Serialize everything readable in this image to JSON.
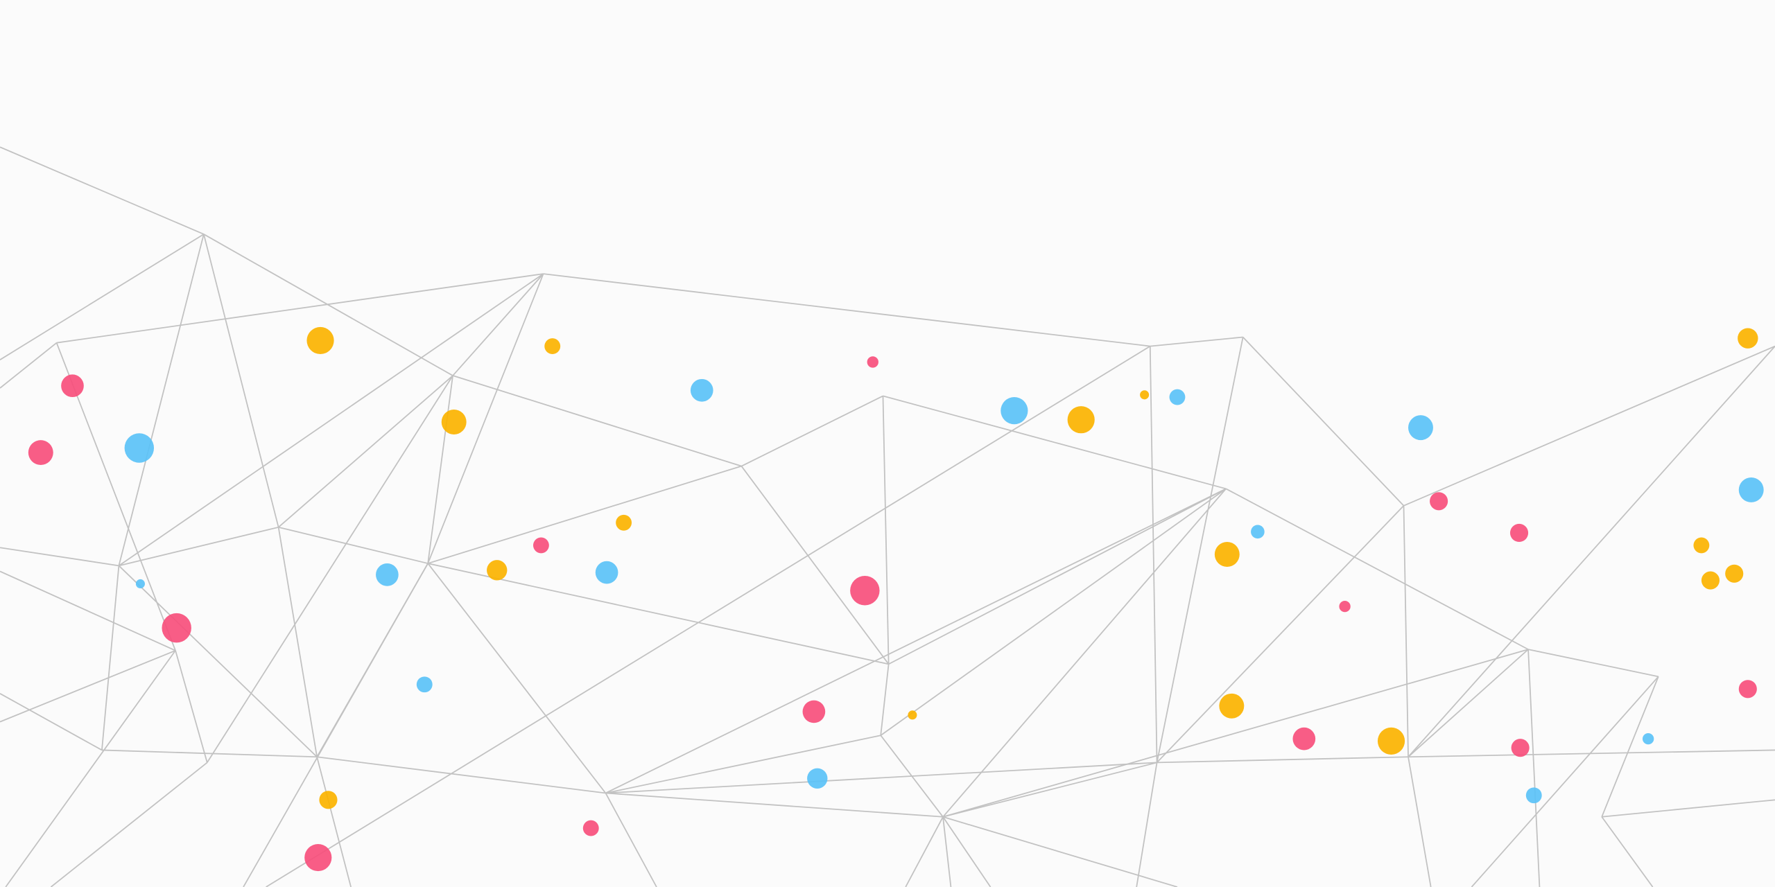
{
  "colors": {
    "background": "#fbfbfb",
    "line": "#c2c2c2",
    "pink": "#f74f7c",
    "orange": "#fbb300",
    "blue": "#5bc2f7"
  },
  "illustration": {
    "kind": "low-poly network of lines with scattered dots",
    "dot_colors": [
      "pink",
      "orange",
      "blue"
    ]
  }
}
